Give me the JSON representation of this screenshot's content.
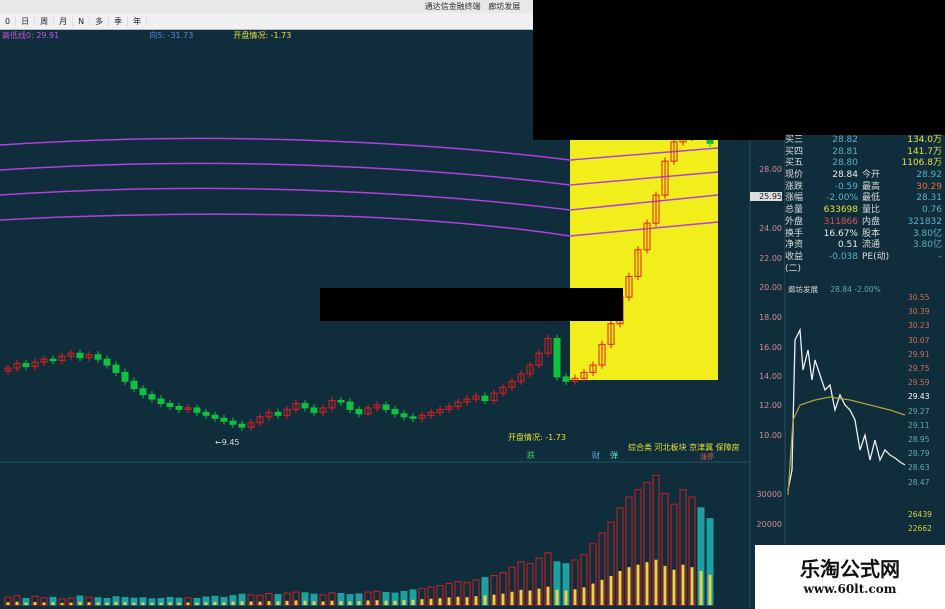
{
  "window": {
    "title": "通达信金融终端",
    "stock": "廊坊发展"
  },
  "toolbar": {
    "items": [
      "0",
      "日",
      "周",
      "月",
      "N",
      "多",
      "季",
      "年"
    ]
  },
  "info": {
    "ma_label": "高低线0: 29.91",
    "ind_label": "向5: -31.73",
    "open_label": "开盘情况: -1.73"
  },
  "annotations": {
    "open_info": "开盘情况: -1.73",
    "drop": "跌",
    "cai": "财",
    "tan": "弹",
    "sectors": "综合类 河北板块 京津冀 保障房",
    "limit_up": "涨停",
    "low_marker": "←9.45"
  },
  "price_axis": [
    "28.00",
    "25.95",
    "24.00",
    "22.00",
    "20.00",
    "18.00",
    "16.00",
    "14.00",
    "12.00",
    "10.00"
  ],
  "volume_axis": [
    "30000",
    "20000"
  ],
  "quote": {
    "rows": [
      {
        "l": "买三",
        "v": "28.82",
        "v2": "134.0万"
      },
      {
        "l": "买四",
        "v": "28.81",
        "v2": "141.7万"
      },
      {
        "l": "买五",
        "v": "28.80",
        "v2": "1106.8万"
      },
      {
        "l": "现价",
        "v": "28.84",
        "l2": "今开",
        "v2": "28.92"
      },
      {
        "l": "涨跌",
        "v": "-0.59",
        "l2": "最高",
        "v2": "30.29"
      },
      {
        "l": "涨幅",
        "v": "-2.00%",
        "l2": "最低",
        "v2": "28.31"
      },
      {
        "l": "总量",
        "v": "633698",
        "l2": "量比",
        "v2": "0.76"
      },
      {
        "l": "外盘",
        "v": "311866",
        "l2": "内盘",
        "v2": "321832"
      },
      {
        "l": "换手",
        "v": "16.67%",
        "l2": "股本",
        "v2": "3.80亿"
      },
      {
        "l": "净资",
        "v": "0.51",
        "l2": "流通",
        "v2": "3.80亿"
      },
      {
        "l": "收益(二)",
        "v": "-0.038",
        "l2": "PE(动)",
        "v2": "-"
      }
    ]
  },
  "minute": {
    "title": "廊坊发展",
    "price": "28.84 -2.00%",
    "axis": [
      "30.55",
      "30.39",
      "30.23",
      "30.07",
      "29.91",
      "29.75",
      "29.59",
      "29.43",
      "29.27",
      "29.11",
      "28.95",
      "28.79",
      "28.63",
      "28.47"
    ],
    "vol_axis": [
      "26439",
      "22662"
    ]
  },
  "watermark": {
    "name": "乐淘公式网",
    "url": "www.60lt.com"
  },
  "chart_data": {
    "type": "candlestick",
    "closes": [
      14.6,
      14.9,
      14.7,
      15.0,
      15.2,
      15.1,
      15.4,
      15.6,
      15.3,
      15.5,
      15.2,
      14.8,
      14.3,
      13.7,
      13.2,
      12.8,
      12.5,
      12.2,
      12.0,
      11.8,
      11.9,
      11.6,
      11.4,
      11.2,
      11.0,
      10.8,
      10.6,
      10.9,
      11.3,
      11.6,
      11.4,
      11.8,
      12.2,
      11.9,
      11.6,
      11.9,
      12.4,
      12.3,
      11.8,
      11.5,
      11.9,
      12.1,
      11.8,
      11.5,
      11.3,
      11.2,
      11.4,
      11.6,
      11.8,
      12.0,
      12.3,
      12.5,
      12.7,
      12.4,
      12.9,
      13.3,
      13.7,
      14.2,
      14.8,
      15.6,
      16.6,
      14.0,
      13.7,
      13.9,
      14.3,
      14.8,
      16.2,
      17.6,
      19.4,
      20.8,
      22.6,
      24.4,
      26.3,
      28.6,
      29.9,
      30.2,
      30.4,
      30.3,
      29.8
    ],
    "volumes": [
      2200,
      2600,
      1800,
      2400,
      2000,
      2100,
      1700,
      1900,
      2500,
      2200,
      2000,
      1800,
      2300,
      2100,
      1900,
      2000,
      1700,
      1800,
      2100,
      1900,
      2000,
      1800,
      2200,
      2400,
      2100,
      2600,
      3000,
      2800,
      2700,
      3200,
      2900,
      3300,
      3600,
      3400,
      3000,
      2800,
      3400,
      3200,
      2900,
      3100,
      3600,
      3800,
      3500,
      3300,
      3800,
      4200,
      4600,
      5000,
      5400,
      6000,
      6500,
      6200,
      7000,
      7600,
      8200,
      9000,
      10500,
      12000,
      11500,
      13000,
      14500,
      12000,
      11500,
      12500,
      14000,
      17000,
      20000,
      23000,
      27000,
      30000,
      32000,
      34000,
      36000,
      31000,
      28000,
      32000,
      30000,
      27000,
      24000
    ]
  }
}
